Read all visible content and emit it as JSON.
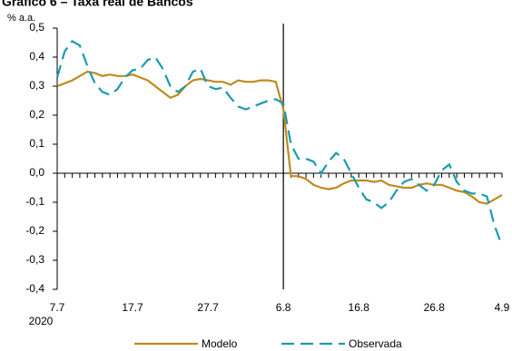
{
  "chart_data": {
    "type": "line",
    "title": "Gráfico 6 – Taxa real de Bancos",
    "y_unit_label": "% a.a.",
    "x_year_label": "2020",
    "categories": [
      "7.7",
      null,
      null,
      null,
      null,
      null,
      null,
      null,
      null,
      null,
      "17.7",
      null,
      null,
      null,
      null,
      null,
      null,
      null,
      null,
      null,
      "27.7",
      null,
      null,
      null,
      null,
      null,
      null,
      null,
      null,
      null,
      "6.8",
      null,
      null,
      null,
      null,
      null,
      null,
      null,
      null,
      null,
      "16.8",
      null,
      null,
      null,
      null,
      null,
      null,
      null,
      null,
      null,
      "26.8",
      null,
      null,
      null,
      null,
      null,
      null,
      null,
      null,
      "4.9"
    ],
    "vline_category": "6.8",
    "series": [
      {
        "name": "Modelo",
        "color": "#c08a1e",
        "dash": false,
        "values": [
          0.3,
          0.31,
          0.32,
          0.335,
          0.35,
          0.345,
          0.335,
          0.34,
          0.335,
          0.335,
          0.34,
          0.33,
          0.32,
          0.3,
          0.28,
          0.26,
          0.27,
          0.3,
          0.32,
          0.325,
          0.32,
          0.315,
          0.315,
          0.305,
          0.32,
          0.315,
          0.315,
          0.32,
          0.32,
          0.315,
          0.22,
          -0.01,
          -0.01,
          -0.02,
          -0.04,
          -0.05,
          -0.055,
          -0.05,
          -0.035,
          -0.025,
          -0.025,
          -0.025,
          -0.03,
          -0.025,
          -0.04,
          -0.045,
          -0.05,
          -0.05,
          -0.04,
          -0.035,
          -0.04,
          -0.04,
          -0.05,
          -0.06,
          -0.065,
          -0.08,
          -0.1,
          -0.105,
          -0.09,
          -0.075
        ]
      },
      {
        "name": "Observada",
        "color": "#1a9bb0",
        "dash": true,
        "values": [
          0.33,
          0.42,
          0.455,
          0.44,
          0.37,
          0.31,
          0.28,
          0.27,
          0.29,
          0.33,
          0.355,
          0.36,
          0.39,
          0.4,
          0.36,
          0.3,
          0.28,
          0.3,
          0.35,
          0.36,
          0.3,
          0.29,
          0.295,
          0.26,
          0.23,
          0.22,
          0.23,
          0.24,
          0.25,
          0.255,
          0.24,
          0.1,
          0.05,
          0.05,
          0.04,
          0.0,
          0.04,
          0.07,
          0.05,
          0.0,
          -0.05,
          -0.09,
          -0.1,
          -0.12,
          -0.1,
          -0.06,
          -0.03,
          -0.02,
          -0.04,
          -0.06,
          -0.04,
          0.01,
          0.03,
          -0.03,
          -0.06,
          -0.07,
          -0.07,
          -0.08,
          -0.18,
          -0.25
        ]
      }
    ],
    "ylim": [
      -0.4,
      0.5
    ],
    "yticks": [
      {
        "value": -0.4,
        "label": "-0,4"
      },
      {
        "value": -0.3,
        "label": "-0,3"
      },
      {
        "value": -0.2,
        "label": "-0,2"
      },
      {
        "value": -0.1,
        "label": "-0,1"
      },
      {
        "value": 0,
        "label": "0,0"
      },
      {
        "value": 0.1,
        "label": "0,1"
      },
      {
        "value": 0.2,
        "label": "0,2"
      },
      {
        "value": 0.3,
        "label": "0,3"
      },
      {
        "value": 0.4,
        "label": "0,4"
      },
      {
        "value": 0.5,
        "label": "0,5"
      }
    ],
    "grid": false,
    "legend": "bottom"
  }
}
